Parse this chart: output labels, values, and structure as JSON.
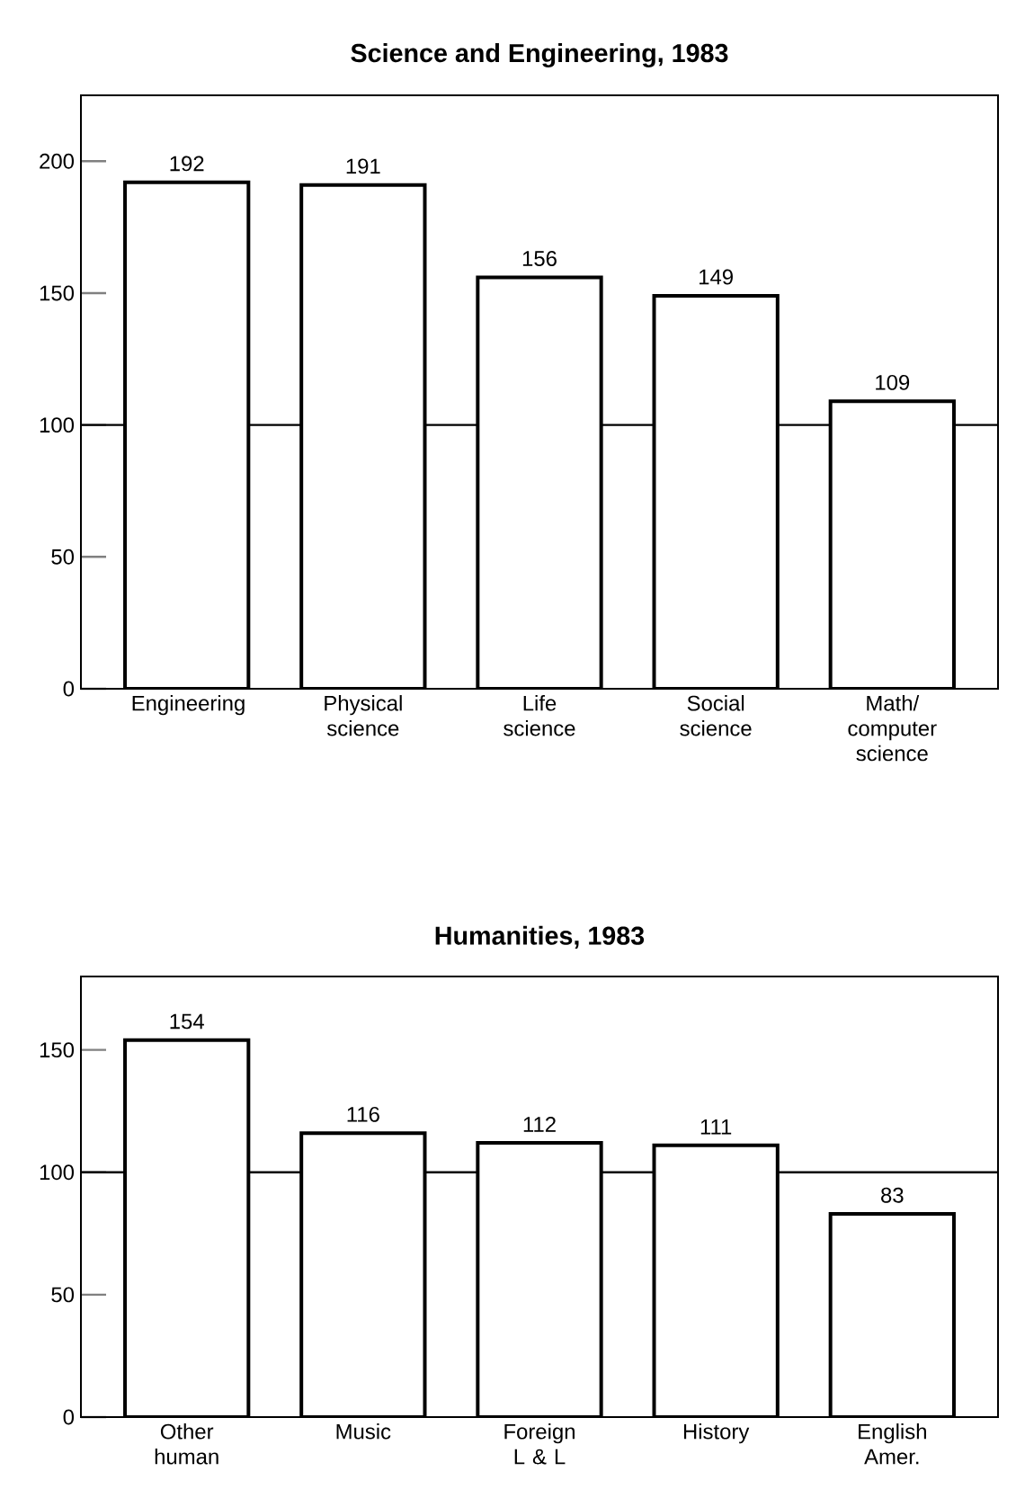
{
  "chart_data": [
    {
      "type": "bar",
      "title": "Science and Engineering, 1983",
      "categories": [
        "Engineering",
        "Physical science",
        "Life science",
        "Social science",
        "Math/ computer science"
      ],
      "values": [
        192,
        191,
        156,
        149,
        109
      ],
      "color": "#ffffff",
      "data_labels": true,
      "ylim": [
        0,
        225
      ],
      "yticks": [
        0,
        50,
        100,
        150,
        200
      ],
      "ref_lines": [
        {
          "axis": "y",
          "value": 100
        }
      ]
    },
    {
      "type": "bar",
      "title": "Humanities, 1983",
      "categories": [
        "Other human",
        "Music",
        "Foreign L & L",
        "History",
        "English Amer."
      ],
      "values": [
        154,
        116,
        112,
        111,
        83
      ],
      "color": "#ffffff",
      "data_labels": true,
      "ylim": [
        0,
        180
      ],
      "yticks": [
        0,
        50,
        100,
        150
      ],
      "ref_lines": [
        {
          "axis": "y",
          "value": 100
        }
      ]
    }
  ]
}
